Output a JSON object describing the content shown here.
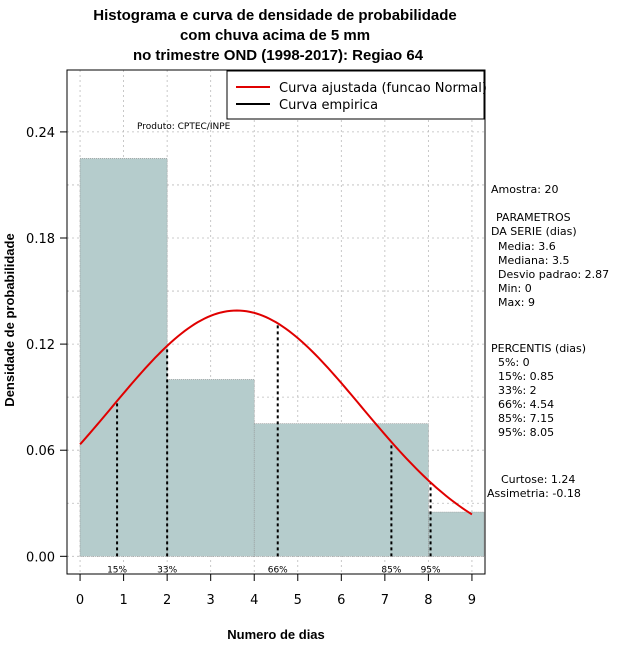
{
  "chart_data": {
    "type": "bar",
    "title_lines": [
      "Histograma e curva de densidade de probabilidade",
      "com chuva acima de 5 mm",
      "no trimestre OND (1998-2017): Regiao 64"
    ],
    "xlabel": "Numero de dias",
    "ylabel": "Densidade de probabilidade",
    "xlim": [
      -0.3,
      9.3
    ],
    "ylim": [
      -0.01,
      0.275
    ],
    "x_ticks": [
      0,
      1,
      2,
      3,
      4,
      5,
      6,
      7,
      8,
      9
    ],
    "y_ticks": [
      0.0,
      0.06,
      0.12,
      0.18,
      0.24
    ],
    "y_tick_labels": [
      "0.00",
      "0.06",
      "0.12",
      "0.18",
      "0.24"
    ],
    "grid": true,
    "bins": [
      {
        "x0": 0,
        "x1": 2,
        "density": 0.225
      },
      {
        "x0": 2,
        "x1": 4,
        "density": 0.1
      },
      {
        "x0": 4,
        "x1": 8,
        "density": 0.075
      },
      {
        "x0": 8,
        "x1": 9.3,
        "density": 0.025
      }
    ],
    "normal_curve": {
      "mean": 3.6,
      "sd": 2.87,
      "x_start": 0,
      "x_end": 9
    },
    "percentile_markers": [
      {
        "label": "15%",
        "x": 0.85
      },
      {
        "label": "33%",
        "x": 2
      },
      {
        "label": "66%",
        "x": 4.54
      },
      {
        "label": "85%",
        "x": 7.15
      },
      {
        "label": "95%",
        "x": 8.05
      }
    ],
    "legend": {
      "position": "top-right",
      "entries": [
        {
          "label": "Curva ajustada (funcao Normal)",
          "color": "#e00000"
        },
        {
          "label": "Curva empirica",
          "color": "#000000"
        }
      ]
    },
    "producer_note": "Produto: CPTEC/INPE",
    "bar_color": "#b5cccc",
    "curve_color": "#e00000"
  },
  "side_panel": {
    "sample": "Amostra: 20",
    "params_title_1": "PARAMETROS",
    "params_title_2": "DA SERIE (dias)",
    "params": [
      "Media: 3.6",
      "Mediana: 3.5",
      "Desvio padrao: 2.87",
      "Min: 0",
      "Max: 9"
    ],
    "percentis_title": "PERCENTIS (dias)",
    "percentis": [
      "5%: 0",
      "15%: 0.85",
      "33%: 2",
      "66%: 4.54",
      "85%: 7.15",
      "95%: 8.05"
    ],
    "curtose": "Curtose: 1.24",
    "assimetria": "Assimetria: -0.18"
  }
}
